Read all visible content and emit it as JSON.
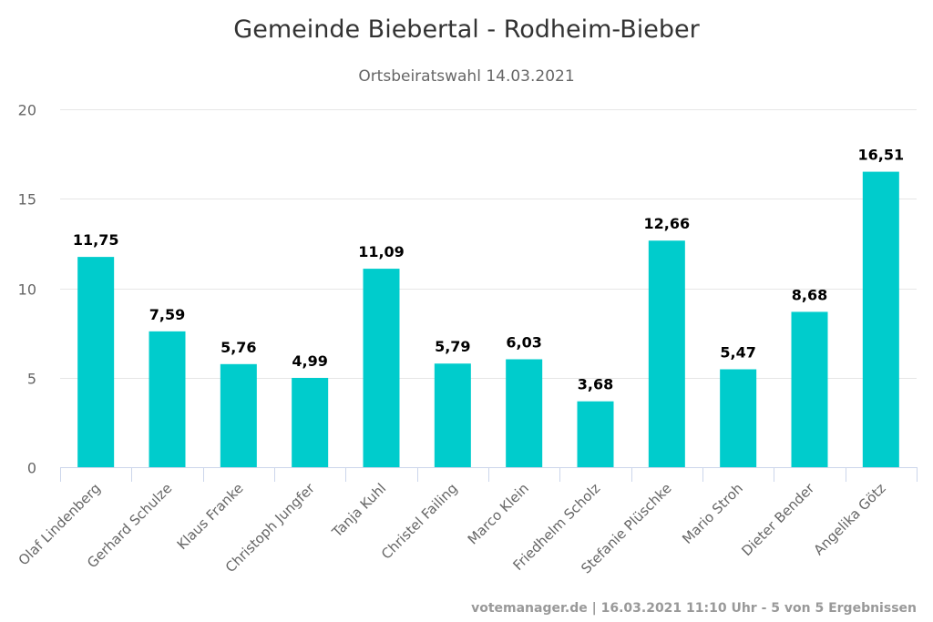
{
  "chart_data": {
    "type": "bar",
    "title": "Gemeinde Biebertal - Rodheim-Bieber",
    "subtitle": "Ortsbeiratswahl 14.03.2021",
    "xlabel": "",
    "ylabel": "",
    "ylim": [
      0,
      20
    ],
    "yticks": [
      0,
      5,
      10,
      15,
      20
    ],
    "grid": true,
    "legend": "none",
    "categories": [
      "Olaf Lindenberg",
      "Gerhard Schulze",
      "Klaus Franke",
      "Christoph Jungfer",
      "Tanja Kuhl",
      "Christel Failing",
      "Marco Klein",
      "Friedhelm Scholz",
      "Stefanie Plüschke",
      "Mario Stroh",
      "Dieter Bender",
      "Angelika Götz"
    ],
    "values": [
      11.75,
      7.59,
      5.76,
      4.99,
      11.09,
      5.79,
      6.03,
      3.68,
      12.66,
      5.47,
      8.68,
      16.51
    ],
    "data_labels": [
      "11,75",
      "7,59",
      "5,76",
      "4,99",
      "11,09",
      "5,79",
      "6,03",
      "3,68",
      "12,66",
      "5,47",
      "8,68",
      "16,51"
    ],
    "bar_color": "#00CCCC",
    "credits": "votemanager.de | 16.03.2021 11:10 Uhr - 5 von 5 Ergebnissen"
  }
}
